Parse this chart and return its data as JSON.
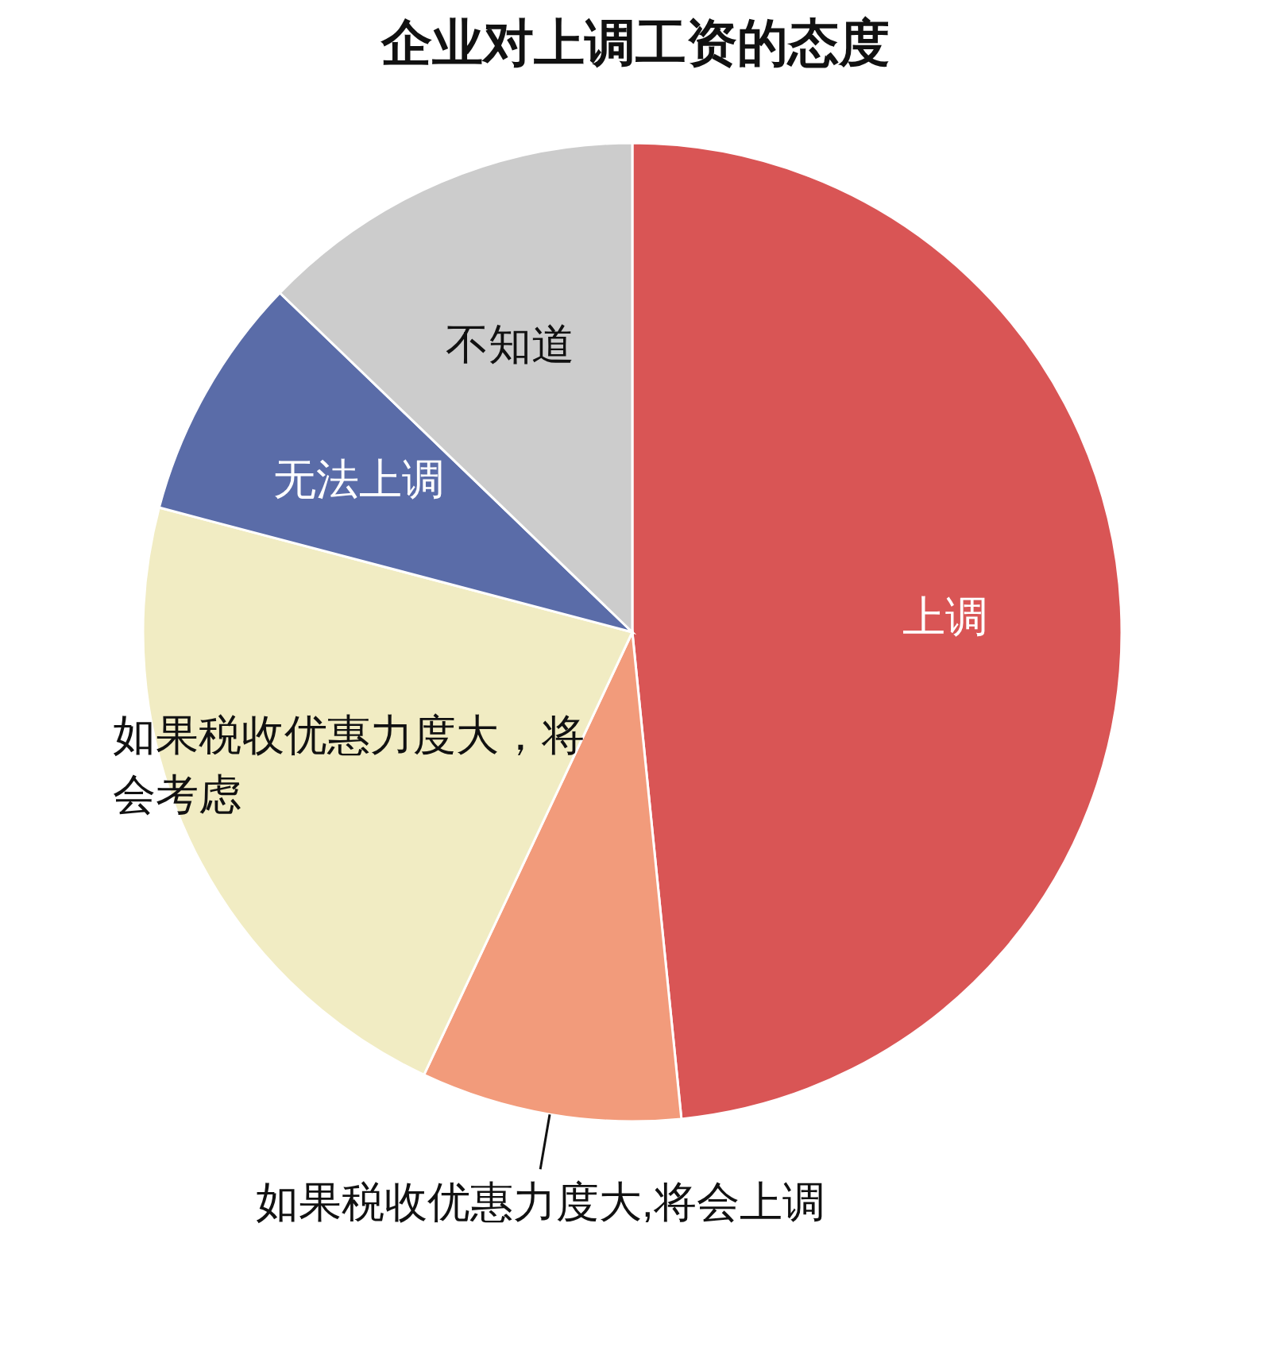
{
  "chart_data": {
    "type": "pie",
    "title": "企业对上调工资的态度",
    "categories": [
      "上调",
      "如果税收优惠力度大,将会上调",
      "如果税收优惠力度大，将会考虑",
      "无法上调",
      "不知道"
    ],
    "values": [
      48.4,
      8.6,
      22.1,
      8.1,
      12.8
    ],
    "colors": [
      "#d95555",
      "#f29b7b",
      "#f1ecc3",
      "#5a6ca8",
      "#cccccc"
    ]
  }
}
